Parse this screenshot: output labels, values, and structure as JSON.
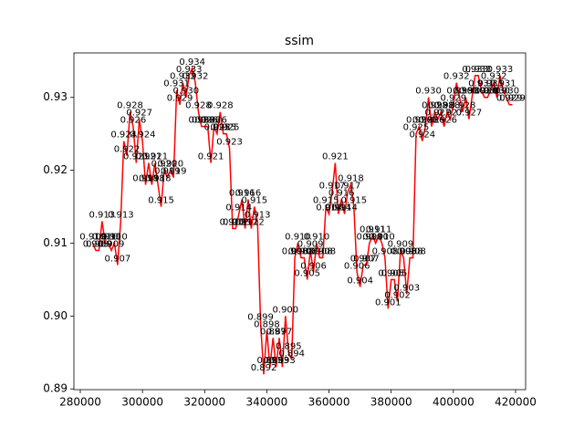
{
  "chart_data": {
    "type": "line",
    "title": "ssim",
    "x": [
      284000,
      285000,
      286000,
      287000,
      288000,
      289000,
      290000,
      291000,
      292000,
      293000,
      294000,
      295000,
      296000,
      297000,
      298000,
      299000,
      300000,
      301000,
      302000,
      303000,
      304000,
      305000,
      306000,
      307000,
      308000,
      309000,
      310000,
      311000,
      312000,
      313000,
      314000,
      315000,
      316000,
      317000,
      318000,
      319000,
      320000,
      321000,
      322000,
      323000,
      324000,
      325000,
      326000,
      327000,
      328000,
      329000,
      330000,
      331000,
      332000,
      333000,
      334000,
      335000,
      336000,
      337000,
      338000,
      339000,
      340000,
      341000,
      342000,
      343000,
      344000,
      345000,
      346000,
      347000,
      348000,
      349000,
      350000,
      351000,
      352000,
      353000,
      354000,
      355000,
      356000,
      357000,
      358000,
      359000,
      360000,
      361000,
      362000,
      363000,
      364000,
      365000,
      366000,
      367000,
      368000,
      369000,
      370000,
      371000,
      372000,
      373000,
      374000,
      375000,
      376000,
      377000,
      378000,
      379000,
      380000,
      381000,
      382000,
      383000,
      384000,
      385000,
      386000,
      387000,
      388000,
      389000,
      390000,
      391000,
      392000,
      393000,
      394000,
      395000,
      396000,
      397000,
      398000,
      399000,
      400000,
      401000,
      402000,
      403000,
      404000,
      405000,
      406000,
      407000,
      408000,
      409000,
      410000,
      411000,
      412000,
      413000,
      414000,
      415000,
      416000,
      417000,
      418000,
      419000
    ],
    "values": [
      0.91,
      0.909,
      0.909,
      0.913,
      0.91,
      0.91,
      0.909,
      0.91,
      0.907,
      0.913,
      0.924,
      0.922,
      0.928,
      0.926,
      0.921,
      0.927,
      0.924,
      0.918,
      0.921,
      0.918,
      0.921,
      0.918,
      0.915,
      0.92,
      0.919,
      0.92,
      0.919,
      0.931,
      0.929,
      0.932,
      0.93,
      0.933,
      0.934,
      0.932,
      0.928,
      0.926,
      0.926,
      0.926,
      0.921,
      0.926,
      0.925,
      0.928,
      0.925,
      0.925,
      0.923,
      0.912,
      0.912,
      0.914,
      0.916,
      0.912,
      0.916,
      0.912,
      0.915,
      0.913,
      0.899,
      0.892,
      0.898,
      0.893,
      0.897,
      0.893,
      0.897,
      0.893,
      0.9,
      0.895,
      0.894,
      0.908,
      0.91,
      0.908,
      0.908,
      0.905,
      0.909,
      0.906,
      0.91,
      0.908,
      0.908,
      0.915,
      0.914,
      0.917,
      0.921,
      0.914,
      0.916,
      0.914,
      0.917,
      0.918,
      0.915,
      0.906,
      0.904,
      0.907,
      0.907,
      0.91,
      0.911,
      0.91,
      0.911,
      0.91,
      0.908,
      0.901,
      0.905,
      0.905,
      0.902,
      0.909,
      0.908,
      0.903,
      0.908,
      0.908,
      0.925,
      0.926,
      0.924,
      0.926,
      0.93,
      0.926,
      0.928,
      0.927,
      0.928,
      0.926,
      0.928,
      0.927,
      0.929,
      0.932,
      0.93,
      0.928,
      0.93,
      0.927,
      0.93,
      0.933,
      0.933,
      0.931,
      0.93,
      0.93,
      0.931,
      0.932,
      0.93,
      0.933,
      0.931,
      0.93,
      0.929,
      0.929
    ],
    "value_labels": [
      "0.910",
      "0.909",
      "0.909",
      "0.913",
      "0.910",
      "0.910",
      "0.909",
      "0.910",
      "0.907",
      "0.913",
      "0.924",
      "0.922",
      "0.928",
      "0.926",
      "0.921",
      "0.927",
      "0.924",
      "0.918",
      "0.921",
      "0.918",
      "0.921",
      "0.918",
      "0.915",
      "0.920",
      "0.919",
      "0.920",
      "0.919",
      "0.931",
      "0.929",
      "0.932",
      "0.930",
      "0.933",
      "0.934",
      "0.932",
      "0.928",
      "0.926",
      "0.926",
      "0.926",
      "0.921",
      "0.926",
      "0.925",
      "0.928",
      "0.925",
      "0.925",
      "0.923",
      "0.912",
      "0.912",
      "0.914",
      "0.916",
      "0.912",
      "0.916",
      "0.912",
      "0.915",
      "0.913",
      "0.899",
      "0.892",
      "0.898",
      "0.893",
      "0.897",
      "0.893",
      "0.897",
      "0.893",
      "0.900",
      "0.895",
      "0.894",
      "0.908",
      "0.910",
      "0.908",
      "0.908",
      "0.905",
      "0.909",
      "0.906",
      "0.910",
      "0.908",
      "0.908",
      "0.915",
      "0.914",
      "0.917",
      "0.921",
      "0.914",
      "0.916",
      "0.914",
      "0.917",
      "0.918",
      "0.915",
      "0.906",
      "0.904",
      "0.907",
      "0.907",
      "0.910",
      "0.911",
      "0.910",
      "0.911",
      "0.910",
      "0.908",
      "0.901",
      "0.905",
      "0.905",
      "0.902",
      "0.909",
      "0.908",
      "0.903",
      "0.908",
      "0.908",
      "0.925",
      "0.926",
      "0.924",
      "0.926",
      "0.930",
      "0.926",
      "0.928",
      "0.927",
      "0.928",
      "0.926",
      "0.928",
      "0.927",
      "0.929",
      "0.932",
      "0.930",
      "0.928",
      "0.930",
      "0.927",
      "0.930",
      "0.933",
      "0.933",
      "0.931",
      "0.930",
      "0.930",
      "0.931",
      "0.932",
      "0.930",
      "0.933",
      "0.931",
      "0.930",
      "0.929",
      "0.929"
    ],
    "color": "#ff0000",
    "xlim": [
      277950,
      423230
    ],
    "ylim": [
      0.8899,
      0.9361
    ],
    "xticks": [
      280000,
      300000,
      320000,
      340000,
      360000,
      380000,
      400000,
      420000
    ],
    "yticks": [
      0.89,
      {
        "value": 0.9,
        "label": "0.90"
      },
      0.91,
      0.92,
      0.93
    ]
  }
}
